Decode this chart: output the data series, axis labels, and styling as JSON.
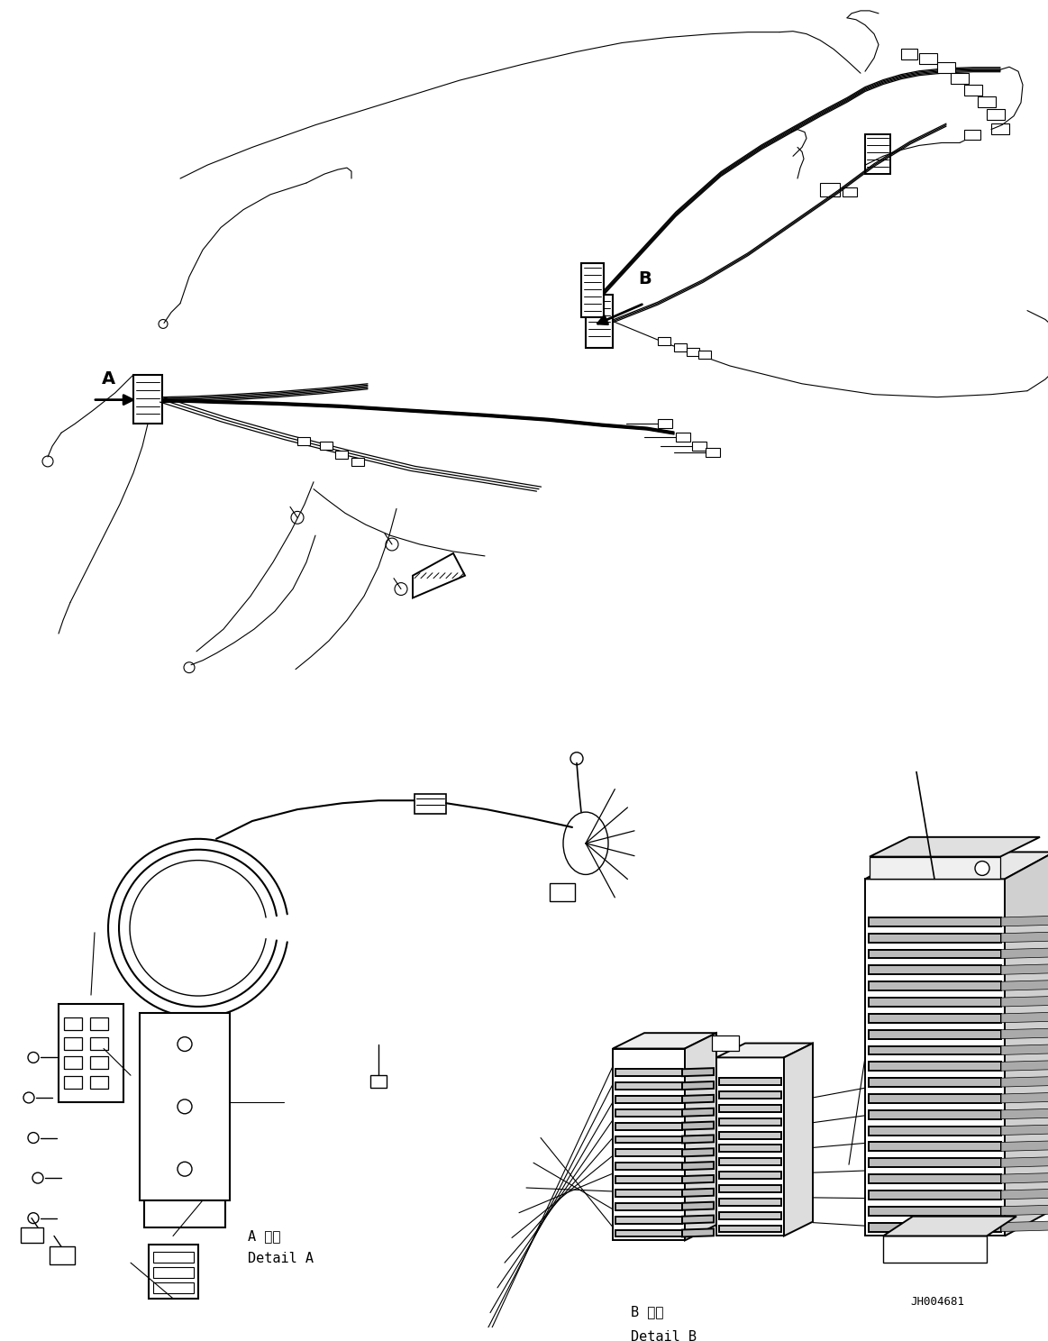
{
  "background_color": "#ffffff",
  "line_color": "#000000",
  "fig_width": 11.63,
  "fig_height": 14.88,
  "dpi": 100,
  "part_number": "JH004681",
  "label_A": "A",
  "label_B": "B",
  "detail_A_label_jp": "A 詳細",
  "detail_A_label_en": "Detail A",
  "detail_B_label_jp": "B 詳細",
  "detail_B_label_en": "Detail B",
  "fig_bg": "#ffffff",
  "lw_main": 1.4,
  "lw_thin": 0.8,
  "lw_thick": 2.0,
  "font_label": 14,
  "font_detail": 11,
  "font_partno": 9
}
